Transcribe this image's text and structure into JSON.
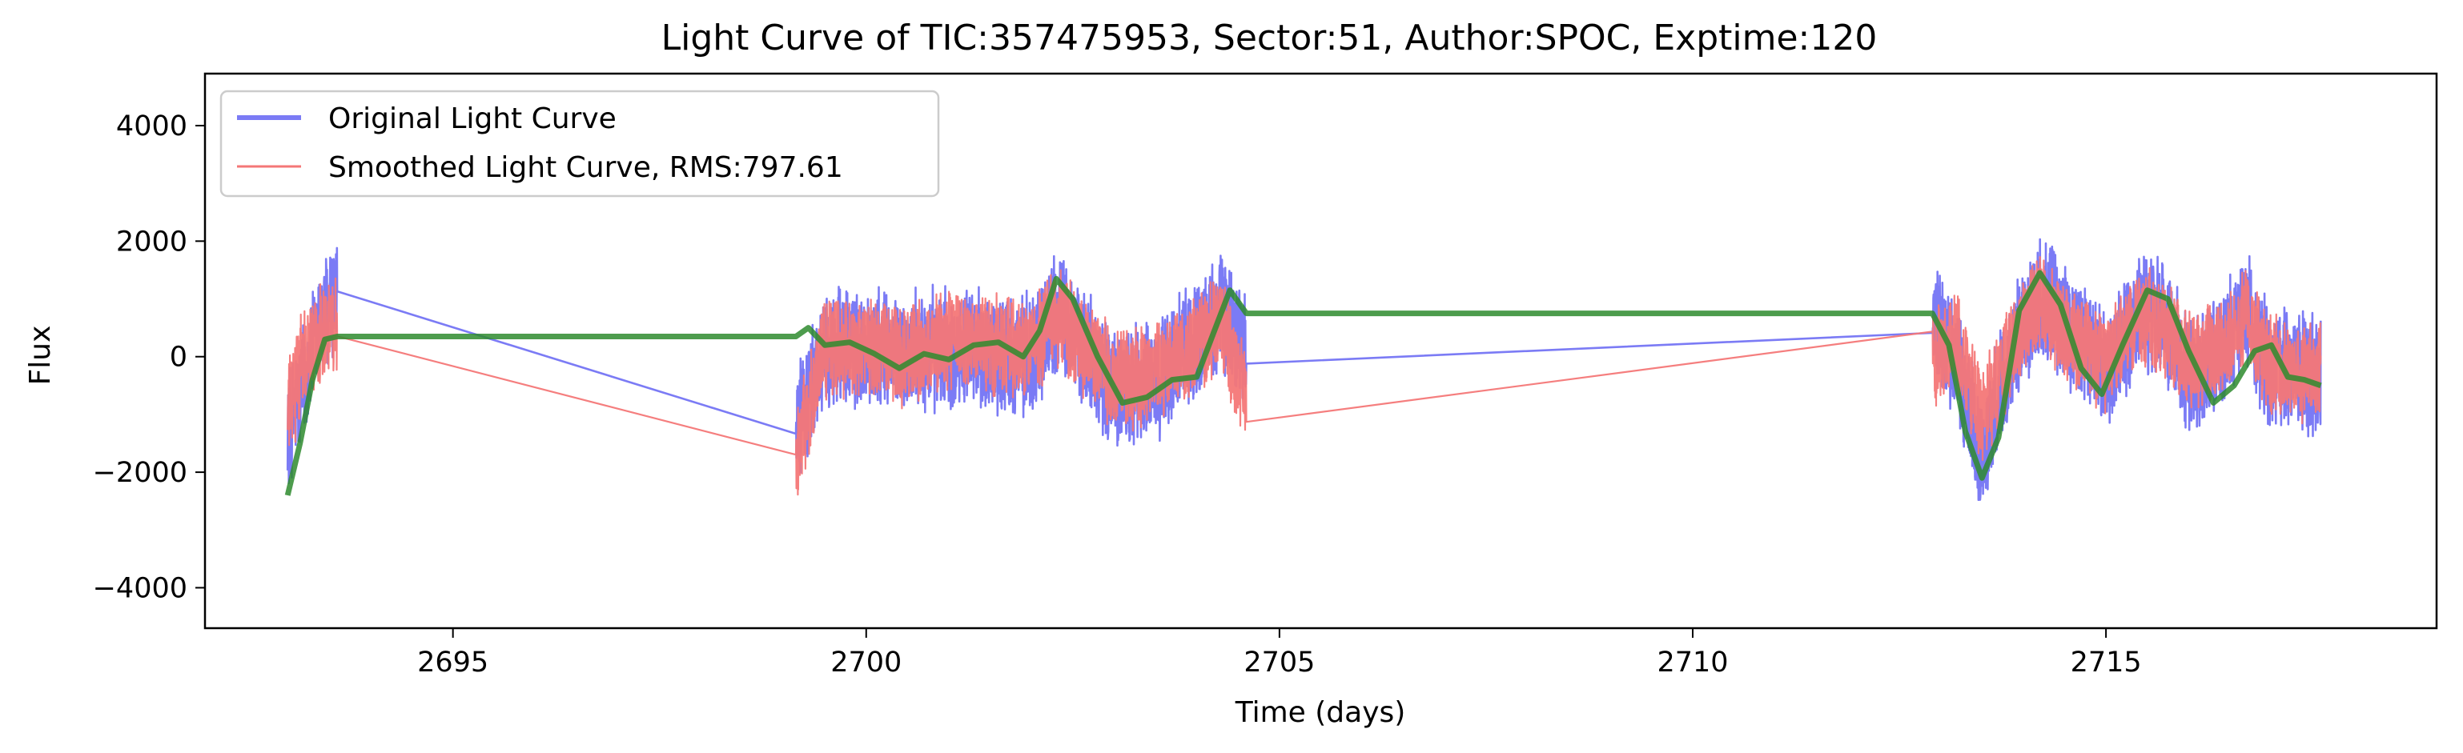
{
  "chart_data": {
    "type": "line",
    "title": "Light Curve of TIC:357475953, Sector:51, Author:SPOC, Exptime:120",
    "xlabel": "Time (days)",
    "ylabel": "Flux",
    "xlim": [
      2692,
      2719
    ],
    "ylim": [
      -4700,
      4900
    ],
    "x_ticks": [
      2695,
      2700,
      2705,
      2710,
      2715
    ],
    "y_ticks": [
      -4000,
      -2000,
      0,
      2000,
      4000
    ],
    "x_tick_labels": [
      "2695",
      "2700",
      "2705",
      "2710",
      "2715"
    ],
    "y_tick_labels": [
      "−4000",
      "−2000",
      "0",
      "2000",
      "4000"
    ],
    "grid": false,
    "legend": "upper left",
    "segments": [
      [
        2693.0,
        2693.6
      ],
      [
        2699.15,
        2704.6
      ],
      [
        2712.9,
        2717.6
      ]
    ],
    "series": [
      {
        "name": "Original Light Curve",
        "color": "#7b7bf5",
        "noise_amplitude": 1150,
        "points": [
          [
            2693.0,
            -1300
          ],
          [
            2693.2,
            -400
          ],
          [
            2693.4,
            600
          ],
          [
            2693.6,
            1000
          ],
          [
            2699.15,
            -1300
          ],
          [
            2699.5,
            100
          ],
          [
            2700.0,
            100
          ],
          [
            2700.5,
            50
          ],
          [
            2701.0,
            150
          ],
          [
            2701.5,
            100
          ],
          [
            2702.0,
            50
          ],
          [
            2702.3,
            800
          ],
          [
            2702.6,
            250
          ],
          [
            2703.0,
            -600
          ],
          [
            2703.5,
            -400
          ],
          [
            2704.0,
            300
          ],
          [
            2704.3,
            800
          ],
          [
            2704.6,
            50
          ],
          [
            2712.9,
            700
          ],
          [
            2713.2,
            -200
          ],
          [
            2713.5,
            -1700
          ],
          [
            2713.9,
            200
          ],
          [
            2714.2,
            1100
          ],
          [
            2714.6,
            400
          ],
          [
            2715.0,
            -300
          ],
          [
            2715.4,
            800
          ],
          [
            2715.7,
            600
          ],
          [
            2716.0,
            -300
          ],
          [
            2716.4,
            100
          ],
          [
            2716.7,
            800
          ],
          [
            2717.0,
            -300
          ],
          [
            2717.3,
            -200
          ],
          [
            2717.6,
            -400
          ]
        ]
      },
      {
        "name": "Smoothed Light Curve, RMS:797.61",
        "color": "#f47777",
        "noise_amplitude": 950,
        "points": [
          [
            2693.0,
            -1000
          ],
          [
            2693.2,
            0
          ],
          [
            2693.4,
            400
          ],
          [
            2693.6,
            650
          ],
          [
            2699.15,
            -1700
          ],
          [
            2699.5,
            200
          ],
          [
            2700.0,
            200
          ],
          [
            2700.5,
            0
          ],
          [
            2701.0,
            300
          ],
          [
            2701.5,
            200
          ],
          [
            2702.0,
            100
          ],
          [
            2702.3,
            700
          ],
          [
            2702.6,
            200
          ],
          [
            2703.0,
            -400
          ],
          [
            2703.5,
            -300
          ],
          [
            2704.0,
            200
          ],
          [
            2704.3,
            600
          ],
          [
            2704.6,
            -700
          ],
          [
            2712.9,
            -50
          ],
          [
            2713.2,
            300
          ],
          [
            2713.5,
            -1000
          ],
          [
            2713.9,
            300
          ],
          [
            2714.2,
            900
          ],
          [
            2714.6,
            300
          ],
          [
            2715.0,
            -100
          ],
          [
            2715.4,
            700
          ],
          [
            2715.7,
            500
          ],
          [
            2716.0,
            -100
          ],
          [
            2716.4,
            200
          ],
          [
            2716.7,
            700
          ],
          [
            2717.0,
            -200
          ],
          [
            2717.3,
            -200
          ],
          [
            2717.6,
            -300
          ]
        ]
      },
      {
        "name": "",
        "color": "#2e8b2e",
        "noise_amplitude": 0,
        "points": [
          [
            2693.0,
            -2400
          ],
          [
            2693.15,
            -1500
          ],
          [
            2693.3,
            -400
          ],
          [
            2693.45,
            300
          ],
          [
            2693.6,
            350
          ],
          [
            2699.15,
            350
          ],
          [
            2699.3,
            500
          ],
          [
            2699.5,
            200
          ],
          [
            2699.8,
            250
          ],
          [
            2700.1,
            50
          ],
          [
            2700.4,
            -200
          ],
          [
            2700.7,
            50
          ],
          [
            2701.0,
            -50
          ],
          [
            2701.3,
            200
          ],
          [
            2701.6,
            250
          ],
          [
            2701.9,
            0
          ],
          [
            2702.1,
            450
          ],
          [
            2702.3,
            1350
          ],
          [
            2702.5,
            1000
          ],
          [
            2702.8,
            0
          ],
          [
            2703.1,
            -800
          ],
          [
            2703.4,
            -700
          ],
          [
            2703.7,
            -400
          ],
          [
            2704.0,
            -350
          ],
          [
            2704.2,
            400
          ],
          [
            2704.4,
            1150
          ],
          [
            2704.6,
            750
          ],
          [
            2712.9,
            750
          ],
          [
            2713.1,
            200
          ],
          [
            2713.3,
            -1300
          ],
          [
            2713.5,
            -2100
          ],
          [
            2713.7,
            -1400
          ],
          [
            2713.95,
            800
          ],
          [
            2714.2,
            1450
          ],
          [
            2714.45,
            900
          ],
          [
            2714.7,
            -200
          ],
          [
            2714.95,
            -650
          ],
          [
            2715.2,
            200
          ],
          [
            2715.5,
            1150
          ],
          [
            2715.75,
            1000
          ],
          [
            2716.0,
            100
          ],
          [
            2716.3,
            -800
          ],
          [
            2716.55,
            -500
          ],
          [
            2716.8,
            100
          ],
          [
            2717.0,
            200
          ],
          [
            2717.2,
            -350
          ],
          [
            2717.4,
            -400
          ],
          [
            2717.6,
            -500
          ]
        ]
      }
    ]
  }
}
